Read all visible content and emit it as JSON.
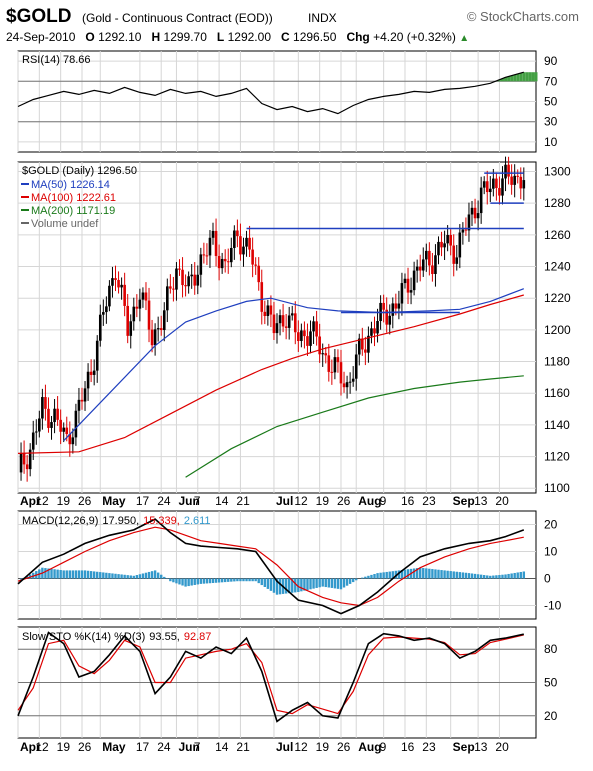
{
  "header": {
    "symbol": "$GOLD",
    "description": "(Gold - Continuous Contract (EOD))",
    "exchange": "INDX",
    "brand": "© StockCharts.com",
    "date": "24-Sep-2010",
    "open_label": "O",
    "open": "1292.10",
    "high_label": "H",
    "high": "1299.70",
    "low_label": "L",
    "low": "1292.00",
    "close_label": "C",
    "close": "1296.50",
    "change_label": "Chg",
    "change": "+4.20 (+0.32%)",
    "change_icon": "triangle-up-icon"
  },
  "colors": {
    "up_candle": "#000000",
    "down_candle": "#dd0000",
    "ma50": "#1f3fbf",
    "ma100": "#dd0000",
    "ma200": "#1a7a1a",
    "macd": "#000000",
    "signal": "#dd0000",
    "histogram": "#3399cc",
    "rsi_fill": "#44a044",
    "resistance": "#1f3fbf"
  },
  "x_axis": {
    "labels": [
      {
        "text": "Apr",
        "bold": true
      },
      {
        "text": "12"
      },
      {
        "text": "19"
      },
      {
        "text": "26"
      },
      {
        "text": "May",
        "bold": true
      },
      {
        "text": "17"
      },
      {
        "text": "24"
      },
      {
        "text": "Jun",
        "bold": true
      },
      {
        "text": "7"
      },
      {
        "text": "14"
      },
      {
        "text": "21"
      },
      {
        "text": "Jul",
        "bold": true
      },
      {
        "text": "12"
      },
      {
        "text": "19"
      },
      {
        "text": "26"
      },
      {
        "text": "Aug",
        "bold": true
      },
      {
        "text": "9"
      },
      {
        "text": "16"
      },
      {
        "text": "23"
      },
      {
        "text": "Sep",
        "bold": true
      },
      {
        "text": "13"
      },
      {
        "text": "20"
      }
    ],
    "label_days": [
      0,
      7,
      14,
      21,
      27,
      40,
      47,
      52,
      59,
      66,
      73,
      84,
      92,
      99,
      106,
      111,
      120,
      127,
      134,
      142,
      151,
      158
    ]
  },
  "chart_data": [
    {
      "type": "line",
      "name": "rsi",
      "legend": "RSI(14) 78.66",
      "y_ticks": [
        90,
        70,
        50,
        30,
        10
      ],
      "reference_lines": [
        70,
        30
      ],
      "ylim": [
        0,
        100
      ],
      "x": [
        0,
        5,
        10,
        15,
        20,
        25,
        30,
        35,
        40,
        45,
        50,
        55,
        60,
        65,
        70,
        75,
        80,
        85,
        90,
        95,
        100,
        105,
        110,
        115,
        120,
        125,
        130,
        135,
        140,
        145,
        150,
        155,
        160,
        166
      ],
      "values": [
        45,
        52,
        56,
        60,
        57,
        61,
        58,
        64,
        59,
        56,
        62,
        58,
        60,
        55,
        58,
        63,
        48,
        42,
        45,
        40,
        43,
        38,
        46,
        52,
        55,
        57,
        60,
        59,
        62,
        63,
        65,
        68,
        74,
        79
      ]
    },
    {
      "type": "candlestick",
      "name": "price",
      "legend_title": "$GOLD (Daily) 1296.50",
      "legend": [
        {
          "text": "MA(50) 1226.14",
          "color": "ma50"
        },
        {
          "text": "MA(100) 1222.61",
          "color": "ma100"
        },
        {
          "text": "MA(200) 1171.19",
          "color": "ma200"
        },
        {
          "text": "Volume undef",
          "color": "none"
        }
      ],
      "y_ticks": [
        1100,
        1120,
        1140,
        1160,
        1180,
        1200,
        1220,
        1240,
        1260,
        1280,
        1300
      ],
      "ylim": [
        1097,
        1306
      ],
      "close_x": [
        0,
        4,
        8,
        12,
        16,
        20,
        24,
        28,
        32,
        36,
        40,
        44,
        48,
        52,
        56,
        60,
        64,
        68,
        72,
        76,
        80,
        84,
        88,
        92,
        96,
        100,
        104,
        108,
        112,
        116,
        120,
        124,
        128,
        132,
        136,
        140,
        144,
        148,
        152,
        156,
        160,
        166
      ],
      "close": [
        1110,
        1125,
        1150,
        1145,
        1130,
        1150,
        1175,
        1210,
        1240,
        1200,
        1225,
        1195,
        1210,
        1240,
        1225,
        1245,
        1255,
        1240,
        1260,
        1250,
        1220,
        1200,
        1210,
        1195,
        1200,
        1185,
        1175,
        1165,
        1185,
        1200,
        1210,
        1215,
        1230,
        1240,
        1245,
        1255,
        1250,
        1270,
        1285,
        1292,
        1295,
        1297
      ],
      "ma50": [
        [
          15,
          1130
        ],
        [
          30,
          1160
        ],
        [
          45,
          1190
        ],
        [
          55,
          1205
        ],
        [
          65,
          1212
        ],
        [
          75,
          1218
        ],
        [
          83,
          1220
        ],
        [
          95,
          1214
        ],
        [
          105,
          1212
        ],
        [
          120,
          1211
        ],
        [
          135,
          1212
        ],
        [
          145,
          1213
        ],
        [
          155,
          1218
        ],
        [
          166,
          1226
        ]
      ],
      "ma100": [
        [
          0,
          1122
        ],
        [
          20,
          1123
        ],
        [
          35,
          1132
        ],
        [
          50,
          1147
        ],
        [
          65,
          1162
        ],
        [
          80,
          1175
        ],
        [
          90,
          1182
        ],
        [
          100,
          1188
        ],
        [
          115,
          1195
        ],
        [
          130,
          1202
        ],
        [
          145,
          1210
        ],
        [
          155,
          1216
        ],
        [
          166,
          1222
        ]
      ],
      "ma200": [
        [
          55,
          1107
        ],
        [
          70,
          1125
        ],
        [
          85,
          1139
        ],
        [
          100,
          1148
        ],
        [
          115,
          1157
        ],
        [
          130,
          1163
        ],
        [
          145,
          1167
        ],
        [
          155,
          1169
        ],
        [
          166,
          1171
        ]
      ],
      "resistance_lines": [
        {
          "x": [
            75,
            166
          ],
          "value": 1264
        },
        {
          "x": [
            153,
            166
          ],
          "value": 1299
        },
        {
          "x": [
            155,
            166
          ],
          "value": 1280
        }
      ],
      "support_line": {
        "x": [
          106,
          145
        ],
        "value": 1211
      }
    },
    {
      "type": "line",
      "name": "macd",
      "legend": [
        "MACD(12,26,9)",
        "17.950",
        "15.339",
        "2.611"
      ],
      "y_ticks": [
        20,
        10,
        0,
        -10
      ],
      "ylim": [
        -15,
        25
      ],
      "x": [
        0,
        8,
        15,
        22,
        30,
        38,
        45,
        50,
        55,
        60,
        66,
        72,
        78,
        85,
        92,
        100,
        106,
        112,
        118,
        125,
        132,
        140,
        148,
        155,
        160,
        166
      ],
      "macd": [
        -2,
        6,
        9,
        13,
        16,
        18,
        22,
        17,
        13,
        12,
        11.5,
        11,
        10,
        -1,
        -8,
        -10,
        -13,
        -10,
        -5,
        2,
        8,
        11,
        13,
        14,
        15.5,
        18
      ],
      "signal": [
        -1,
        2,
        6,
        10,
        14,
        17,
        19,
        18,
        16,
        14,
        13,
        12,
        11,
        5,
        -3,
        -7,
        -9,
        -10,
        -7,
        -1,
        4,
        8,
        11,
        13,
        14,
        15.3
      ],
      "histogram": [
        -1,
        4,
        3,
        3,
        2,
        1,
        3,
        -1,
        -3,
        -2,
        -1.5,
        -1,
        -1,
        -6,
        -5,
        -3,
        -4,
        0,
        2,
        3,
        4,
        3,
        2,
        1,
        1.5,
        2.6
      ]
    },
    {
      "type": "line",
      "name": "stochastic",
      "legend": [
        "Slow STO %K(14) %D(3)",
        "93.55",
        "92.87"
      ],
      "y_ticks": [
        80,
        50,
        20
      ],
      "reference_lines": [
        80,
        50,
        20
      ],
      "ylim": [
        0,
        100
      ],
      "x": [
        0,
        5,
        10,
        15,
        20,
        25,
        30,
        35,
        40,
        45,
        50,
        55,
        60,
        65,
        70,
        75,
        80,
        85,
        90,
        95,
        100,
        105,
        110,
        115,
        120,
        125,
        130,
        135,
        140,
        145,
        150,
        155,
        160,
        166
      ],
      "k": [
        20,
        55,
        95,
        85,
        55,
        60,
        75,
        92,
        78,
        40,
        55,
        78,
        72,
        82,
        76,
        90,
        60,
        15,
        25,
        32,
        20,
        18,
        50,
        85,
        94,
        92,
        88,
        90,
        85,
        72,
        78,
        88,
        90,
        93.5
      ],
      "d": [
        25,
        45,
        85,
        88,
        65,
        58,
        70,
        88,
        82,
        50,
        50,
        72,
        75,
        78,
        80,
        85,
        68,
        25,
        22,
        30,
        26,
        22,
        42,
        75,
        90,
        91,
        90,
        89,
        86,
        75,
        76,
        86,
        89,
        92.9
      ]
    }
  ]
}
